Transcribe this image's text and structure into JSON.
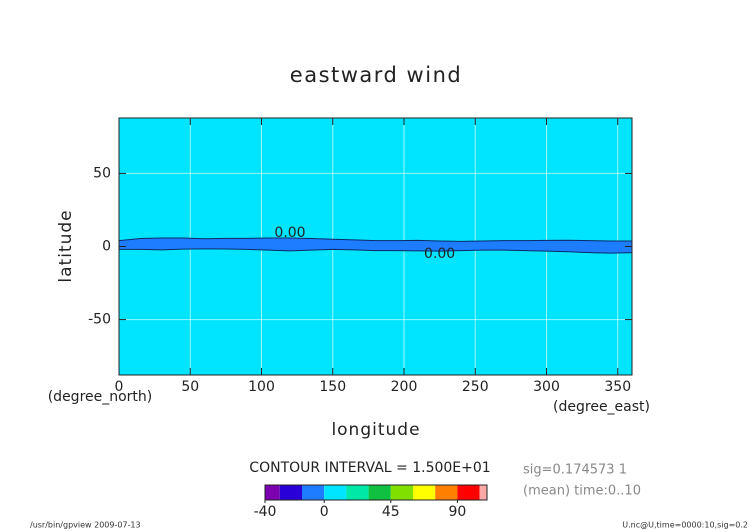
{
  "chart_data": {
    "type": "contour",
    "title": "eastward wind",
    "x_label": "longitude",
    "y_label": "latitude",
    "x_units": "(degree_east)",
    "y_units": "(degree_north)",
    "xlim": [
      0,
      360
    ],
    "ylim": [
      -87.9,
      87.9
    ],
    "xticks": [
      0,
      50,
      100,
      150,
      200,
      250,
      300,
      350
    ],
    "yticks": [
      -50,
      0,
      50
    ],
    "grid": true,
    "field_color": "#00e5ff",
    "band_color": "#1e7dff",
    "contour_color": "#0a2a6a",
    "lon": [
      0,
      15,
      30,
      45,
      60,
      75,
      90,
      105,
      120,
      135,
      150,
      165,
      180,
      195,
      210,
      225,
      240,
      255,
      270,
      285,
      300,
      315,
      330,
      345,
      360
    ],
    "contours": [
      {
        "level": 0,
        "label": "0.00",
        "lat": [
          4,
          5.5,
          5.8,
          5.8,
          5.3,
          5.6,
          5.6,
          5.8,
          5.8,
          5.5,
          5,
          4.5,
          4,
          4,
          4.2,
          3.8,
          3.5,
          3.8,
          4,
          4,
          4.2,
          4.3,
          4,
          3.8,
          3.8
        ]
      },
      {
        "level": 0,
        "label": "0.00",
        "lat": [
          -2,
          -2,
          -2.3,
          -1.8,
          -1.6,
          -1.7,
          -2,
          -2.5,
          -3,
          -2.5,
          -2,
          -2.3,
          -2.8,
          -2.8,
          -3,
          -3.2,
          -2.8,
          -2.5,
          -2.5,
          -2.8,
          -3.2,
          -3.6,
          -4.2,
          -4.5,
          -4.2
        ]
      }
    ],
    "contour_interval": "CONTOUR INTERVAL = 1.500E+01",
    "colorbar": {
      "levels": [
        -40,
        -30,
        -15,
        0,
        15,
        30,
        45,
        60,
        75,
        90,
        105,
        110
      ],
      "colors": [
        "#7a00b0",
        "#2a00d8",
        "#1e7dff",
        "#00e5ff",
        "#00e8a8",
        "#10c040",
        "#80e000",
        "#ffff00",
        "#ff8000",
        "#ff0000",
        "#ffa8a8"
      ],
      "ticks": [
        -40,
        0,
        45,
        90
      ]
    },
    "annotations": [
      "sig=0.174573 1",
      "(mean) time:0..10"
    ],
    "footer_left": "/usr/bin/gpview  2009-07-13",
    "footer_right": "U.nc@U,time=0000:10,sig=0.2"
  }
}
